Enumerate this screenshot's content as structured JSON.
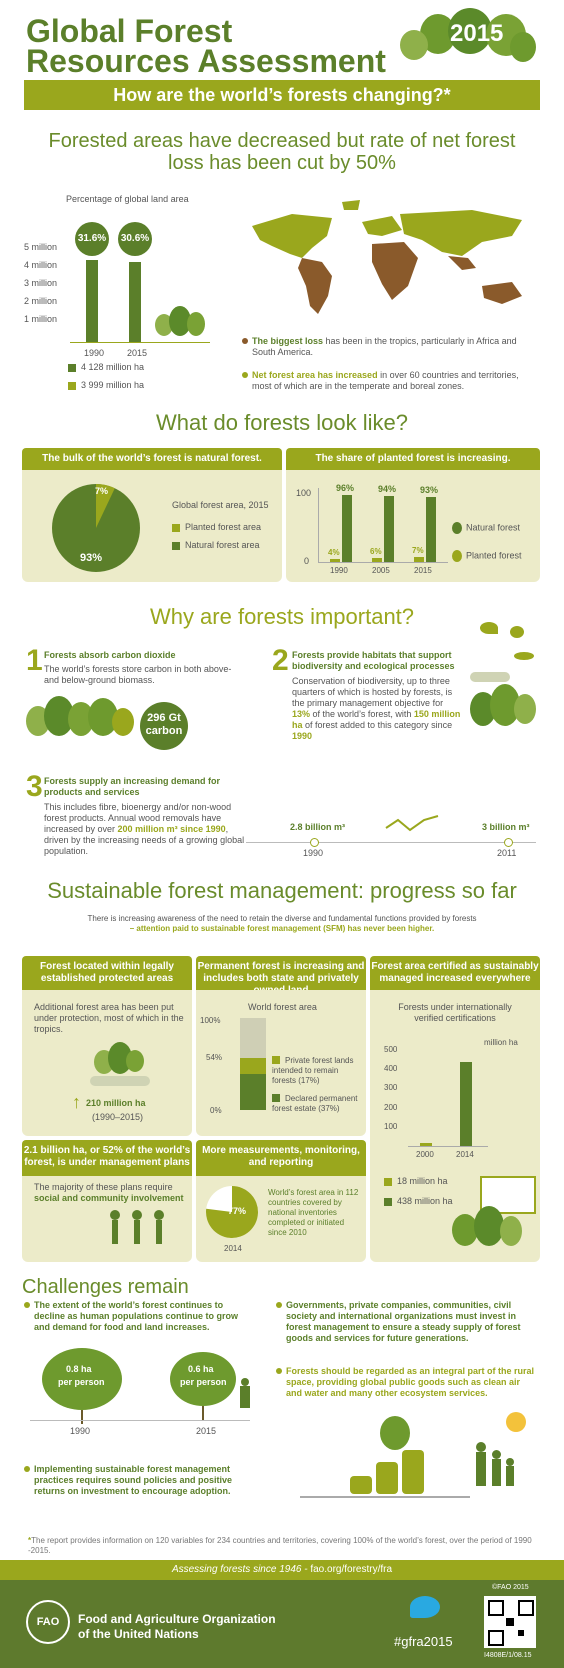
{
  "header": {
    "title_line1": "Global Forest",
    "title_line2": "Resources Assessment",
    "year": "2015",
    "subtitle": "How are the world’s forests changing?*"
  },
  "section1": {
    "headline_line1": "Forested areas have decreased but rate of net forest",
    "headline_line2": "loss has been cut by 50%",
    "chart_title": "Percentage of global land area",
    "ticks": [
      "5 million",
      "4 million",
      "3 million",
      "2 million",
      "1 million"
    ],
    "pct_1990": "31.6%",
    "pct_2015": "30.6%",
    "year_1990": "1990",
    "year_2015": "2015",
    "legend_1990": "4 128 million ha",
    "legend_2015": "3 999 million ha",
    "note1_bold": "The biggest loss",
    "note1_rest": " has been in the tropics, particularly in Africa and South America.",
    "note2_bold": "Net forest area has increased",
    "note2_rest": " in over 60 countries and territories, most of which are in the temperate and boreal zones."
  },
  "section2": {
    "title": "What do forests look like?",
    "left_band": "The bulk of the world’s forest is natural forest.",
    "right_band": "The share of planted forest is increasing.",
    "pie_small": "7%",
    "pie_big": "93%",
    "pie_caption": "Global forest area, 2015",
    "legend_planted": "Planted forest area",
    "legend_natural": "Natural forest area",
    "axis_100": "100",
    "axis_0": "0",
    "bars": [
      {
        "year": "1990",
        "planted": "4%",
        "natural": "96%"
      },
      {
        "year": "2005",
        "planted": "6%",
        "natural": "94%"
      },
      {
        "year": "2015",
        "planted": "7%",
        "natural": "93%"
      }
    ],
    "natural_label": "Natural forest",
    "planted_label": "Planted forest"
  },
  "section3": {
    "title": "Why are forests important?",
    "item1_num": "1",
    "item1_title": "Forests absorb carbon dioxide",
    "item1_text": "The world’s forests store carbon in both above- and below-ground biomass.",
    "carbon_value": "296 Gt",
    "carbon_unit": "carbon",
    "item2_num": "2",
    "item2_title": "Forests provide habitats that support biodiversity and ecological processes",
    "item2_text_a": "Conservation of biodiversity, up to three quarters of which is hosted by forests, is the primary management objective for ",
    "item2_pct": "13%",
    "item2_text_b": " of the world’s forest, with ",
    "item2_ha": "150 million ha",
    "item2_text_c": " of forest added to this category since ",
    "item2_year": "1990",
    "item3_num": "3",
    "item3_title": "Forests supply an increasing demand for products and services",
    "item3_text_a": "This includes fibre, bioenergy and/or non-wood forest products. Annual wood removals have increased by over ",
    "item3_bold": "200 million m³ since 1990",
    "item3_text_b": ", driven by the increasing needs of a growing global population.",
    "wood_1990": "2.8 billion m³",
    "wood_2011": "3 billion m³",
    "year_1990": "1990",
    "year_2011": "2011"
  },
  "section4": {
    "title": "Sustainable forest management: progress so far",
    "intro_line1": "There is increasing awareness of the need to retain the diverse and fundamental functions provided by forests",
    "intro_line2": "– attention paid to sustainable forest management (SFM) has never been higher.",
    "b1_band": "Forest located within legally established protected areas",
    "b1_text": "Additional forest area has been put under protection, most of which in the tropics.",
    "b1_value": "210 million ha",
    "b1_range": "(1990–2015)",
    "b2_band": "Permanent forest is increasing and includes both state and privately owned land",
    "b2_caption": "World forest area",
    "b2_ticks": [
      "100%",
      "54%",
      "0%"
    ],
    "b2_legend1": "Private forest lands intended to remain forests (17%)",
    "b2_legend2": "Declared permanent forest estate (37%)",
    "b3_band": "Forest area certified as sustainably managed increased everywhere",
    "b3_caption": "Forests under internationally verified certifications",
    "b3_unit": "million ha",
    "b3_ticks": [
      "500",
      "400",
      "300",
      "200",
      "100"
    ],
    "b3_year1": "2000",
    "b3_year2": "2014",
    "b3_legend1": "18 million ha",
    "b3_legend2": "438 million ha",
    "b4_band": "2.1 billion ha, or 52% of the world’s forest, is under management plans",
    "b4_text": "The majority of these plans require ",
    "b4_bold": "social and community involvement",
    "b5_band": "More measurements, monitoring, and reporting",
    "b5_pct": "77%",
    "b5_year": "2014",
    "b5_text": "World’s forest area in 112 countries covered by national inventories completed or initiated since 2010"
  },
  "section5": {
    "title": "Challenges remain",
    "c1": "The extent of the world’s forest continues to decline as human populations continue to grow and demand for food and land increases.",
    "tree1_value": "0.8 ha",
    "tree1_unit": "per person",
    "tree1_year": "1990",
    "tree2_value": "0.6 ha",
    "tree2_unit": "per person",
    "tree2_year": "2015",
    "c2": "Implementing sustainable forest management practices requires sound policies and positive returns on investment to encourage adoption.",
    "c3": "Governments, private companies, communities, civil society and international organizations must invest in forest management to ensure a steady supply of forest goods and services for future generations.",
    "c4": "Forests should be regarded as an integral part of the rural space, providing global public goods such as clean air and water and many other ecosystem services."
  },
  "footnote": "The report provides information on 120 variables for 234 countries and territories, covering 100% of the world’s forest, over the period of 1990 -2015.",
  "footer": {
    "tagline_a": "Assessing forests since 1946 - ",
    "tagline_b": "fao.org/forestry/fra",
    "org_line1": "Food and Agriculture Organization",
    "org_line2": "of the United Nations",
    "hashtag": "#gfra2015",
    "copyright": "©FAO 2015",
    "code": "I4808E/1/08.15",
    "logo_text": "FAO"
  },
  "colors": {
    "dark_green": "#5b7f2a",
    "olive": "#9aa71d",
    "beige": "#ecebc9",
    "brown": "#8a5a2b",
    "footer": "#5e7a2d"
  }
}
